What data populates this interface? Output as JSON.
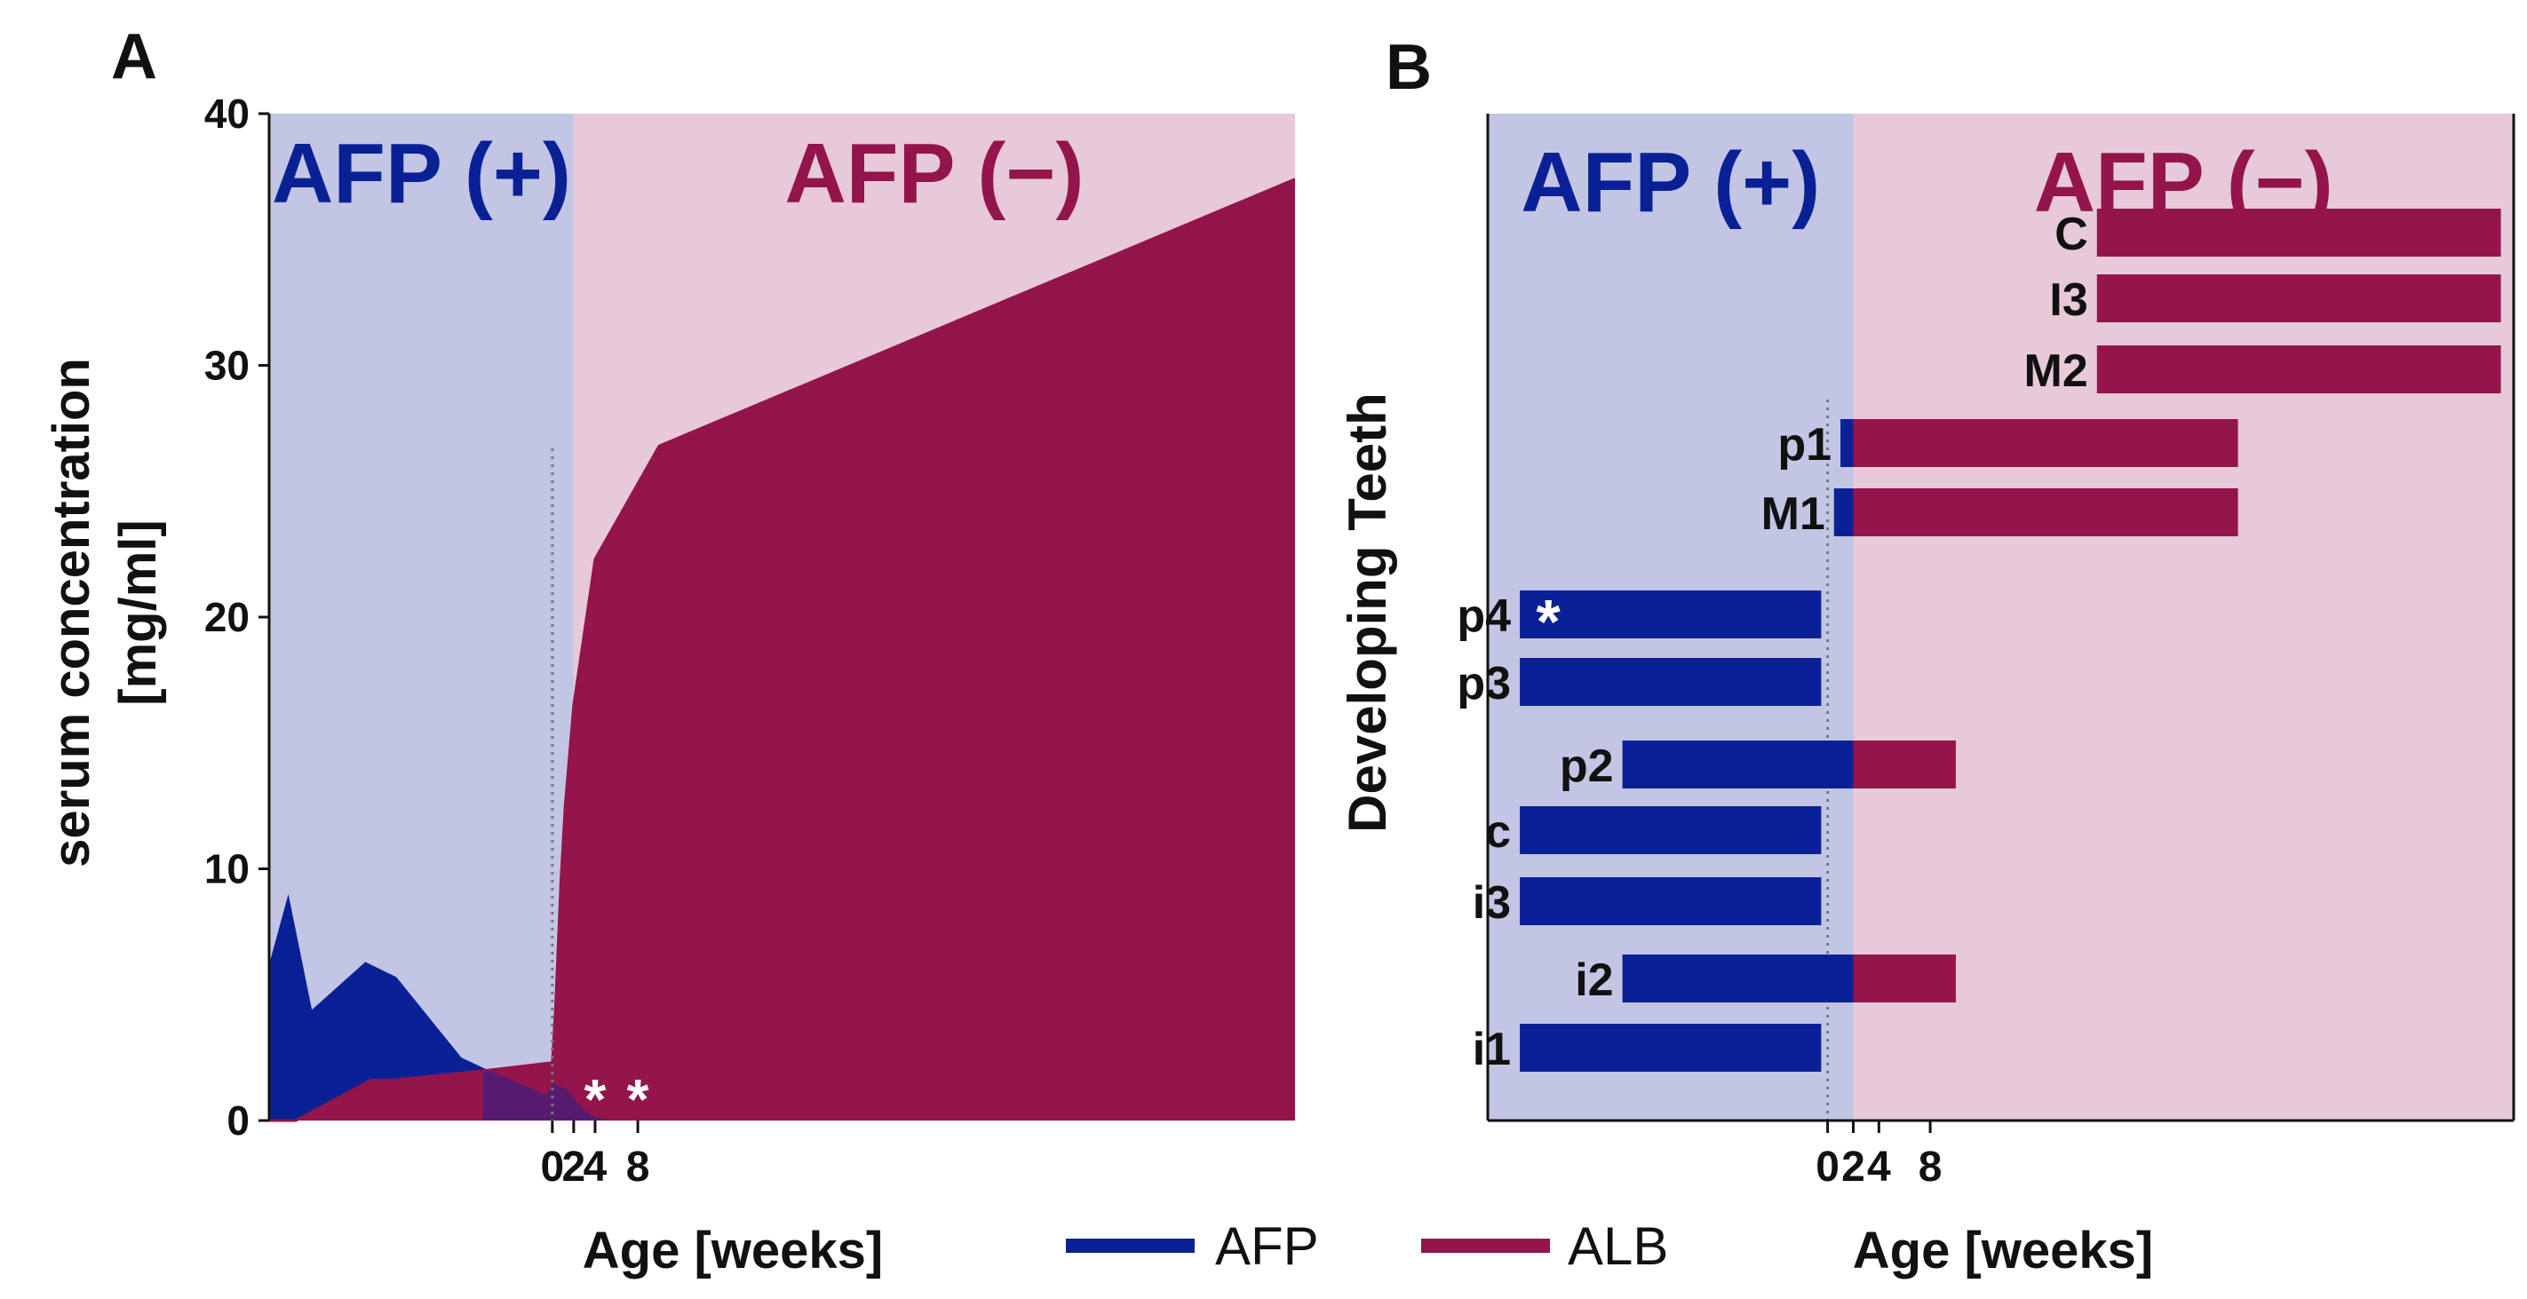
{
  "panels": {
    "a_label": "A",
    "b_label": "B"
  },
  "colors": {
    "afp": "#0a2196",
    "alb": "#93154b",
    "afp_bg": "#c3c5e4",
    "alb_bg": "#e7c9d8",
    "overlap": "#4b1c74"
  },
  "legend": {
    "afp": "AFP",
    "alb": "ALB"
  },
  "chart_data": [
    {
      "type": "area",
      "title": "",
      "ylabel_line1": "serum concentration",
      "ylabel_line2": "[mg/ml]",
      "xlabel": "Age [weeks]",
      "region_left_label": "AFP (+)",
      "region_right_label": "AFP (−)",
      "ylim": [
        0,
        40
      ],
      "yticks": [
        "0",
        "10",
        "20",
        "30",
        "40"
      ],
      "xlim": [
        -26.5,
        69.5
      ],
      "xticks": [
        {
          "value": 0,
          "label": "0"
        },
        {
          "value": 2,
          "label": "2"
        },
        {
          "value": 4,
          "label": "4"
        },
        {
          "value": 8,
          "label": "8"
        }
      ],
      "region_boundary": 2,
      "dotted_line_at": 0,
      "markers": [
        {
          "x": 4,
          "label": "*"
        },
        {
          "x": 8,
          "label": "*"
        }
      ],
      "series": [
        {
          "name": "AFP",
          "x": [
            -26.5,
            -24.7,
            -22.5,
            -17.5,
            -14.6,
            -8.5,
            -6.5,
            -0.5,
            0,
            1.5,
            2.2,
            3,
            4,
            5,
            69.5
          ],
          "y": [
            6.2,
            9.0,
            4.4,
            6.3,
            5.7,
            2.5,
            2.1,
            1.0,
            1.5,
            1.2,
            0.8,
            0.4,
            0.15,
            0.05,
            0.0
          ]
        },
        {
          "name": "ALB",
          "x": [
            -26.5,
            -24,
            -17,
            -15,
            -6,
            0,
            0.3,
            0.8,
            1.2,
            2,
            4,
            10,
            69.5
          ],
          "y": [
            0.0,
            0.0,
            1.6,
            1.6,
            2.0,
            2.3,
            4.5,
            9.5,
            12.5,
            16.5,
            22.3,
            26.8,
            37.4
          ]
        }
      ]
    },
    {
      "type": "bar",
      "orientation": "horizontal",
      "ylabel": "Developing Teeth",
      "xlabel": "Age [weeks]",
      "region_left_label": "AFP (+)",
      "region_right_label": "AFP (−)",
      "xlim": [
        -26.5,
        53.5
      ],
      "xticks": [
        {
          "value": 0,
          "label": "0"
        },
        {
          "value": 2,
          "label": "2"
        },
        {
          "value": 4,
          "label": "4"
        },
        {
          "value": 8,
          "label": "8"
        }
      ],
      "region_boundary": 2,
      "dotted_line_at": 0,
      "rows": [
        {
          "label": "C",
          "segments": [
            {
              "series": "ALB",
              "start": 21,
              "end": 52.5
            }
          ]
        },
        {
          "label": "I3",
          "segments": [
            {
              "series": "ALB",
              "start": 21,
              "end": 52.5
            }
          ]
        },
        {
          "label": "M2",
          "segments": [
            {
              "series": "ALB",
              "start": 21,
              "end": 52.5
            }
          ]
        },
        {
          "label": "p1",
          "segments": [
            {
              "series": "AFP",
              "start": 1.0,
              "end": 2
            },
            {
              "series": "ALB",
              "start": 2,
              "end": 32
            }
          ]
        },
        {
          "label": "M1",
          "segments": [
            {
              "series": "AFP",
              "start": 0.5,
              "end": 2
            },
            {
              "series": "ALB",
              "start": 2,
              "end": 32
            }
          ]
        },
        {
          "label": "p4",
          "marker": "*",
          "segments": [
            {
              "series": "AFP",
              "start": -24,
              "end": -0.5
            }
          ]
        },
        {
          "label": "p3",
          "segments": [
            {
              "series": "AFP",
              "start": -24,
              "end": -0.5
            }
          ]
        },
        {
          "label": "p2",
          "segments": [
            {
              "series": "AFP",
              "start": -16,
              "end": 2
            },
            {
              "series": "ALB",
              "start": 2,
              "end": 10
            }
          ]
        },
        {
          "label": "c",
          "segments": [
            {
              "series": "AFP",
              "start": -24,
              "end": -0.5
            }
          ]
        },
        {
          "label": "i3",
          "segments": [
            {
              "series": "AFP",
              "start": -24,
              "end": -0.5
            }
          ]
        },
        {
          "label": "i2",
          "segments": [
            {
              "series": "AFP",
              "start": -16,
              "end": 2
            },
            {
              "series": "ALB",
              "start": 2,
              "end": 10
            }
          ]
        },
        {
          "label": "i1",
          "segments": [
            {
              "series": "AFP",
              "start": -24,
              "end": -0.5
            }
          ]
        }
      ]
    }
  ]
}
